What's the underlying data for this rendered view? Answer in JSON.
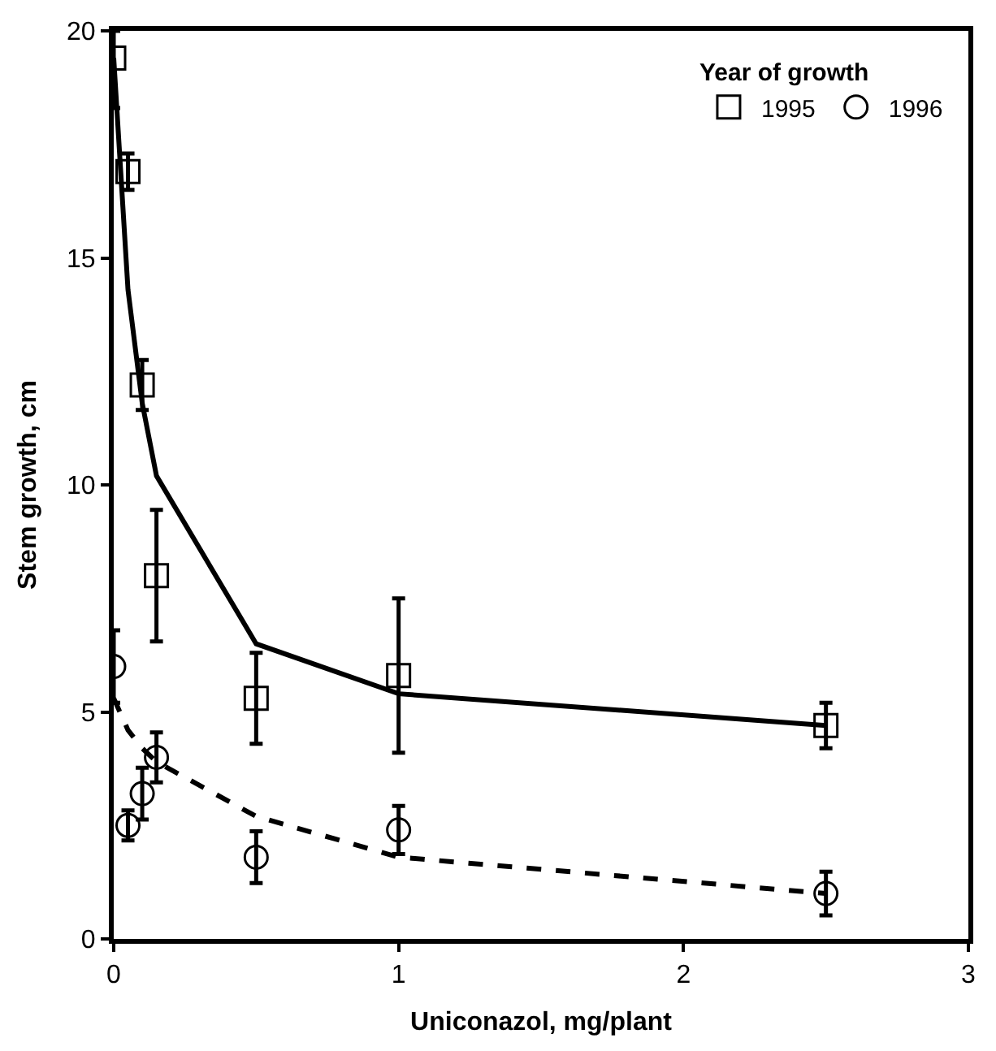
{
  "chart_data": {
    "type": "scatter",
    "xlabel": "Uniconazol, mg/plant",
    "ylabel": "Stem growth, cm",
    "legend_title": "Year of growth",
    "xlim": [
      0,
      3
    ],
    "xticks": [
      0,
      1,
      2,
      3
    ],
    "ylim": [
      0,
      20
    ],
    "yticks": [
      0,
      5,
      10,
      15,
      20
    ],
    "legend": "top right",
    "series": [
      {
        "name": "1995",
        "marker": "square",
        "color": "#000000",
        "x": [
          0,
          0.05,
          0.1,
          0.15,
          0.5,
          1,
          2.5
        ],
        "values": [
          19.4,
          16.9,
          12.2,
          8.0,
          5.3,
          5.8,
          4.7
        ],
        "errors": [
          [
            18.3,
            20
          ],
          0.4,
          0.55,
          1.45,
          1.0,
          1.7,
          0.5
        ]
      },
      {
        "name": "1996",
        "marker": "circle",
        "color": "#000000",
        "x": [
          0,
          0.05,
          0.1,
          0.15,
          0.5,
          1,
          2.5
        ],
        "values": [
          6.0,
          2.5,
          3.2,
          4.0,
          1.8,
          2.4,
          1.0
        ],
        "errors": [
          0.8,
          0.33,
          0.57,
          0.55,
          0.57,
          0.53,
          0.48
        ]
      },
      {
        "type": "line",
        "line_style": "solid",
        "marker": "none",
        "color": "#000000",
        "x": [
          0,
          0.05,
          0.1,
          0.15,
          0.5,
          1,
          2.5
        ],
        "values": [
          19.4,
          14.3,
          11.8,
          10.2,
          6.5,
          5.4,
          4.7
        ]
      },
      {
        "type": "line",
        "line_style": "dashed",
        "marker": "none",
        "color": "#000000",
        "x": [
          0,
          0.05,
          0.1,
          0.15,
          0.5,
          1,
          2.5
        ],
        "values": [
          5.3,
          4.6,
          4.2,
          3.9,
          2.7,
          1.8,
          1.0
        ]
      }
    ]
  }
}
